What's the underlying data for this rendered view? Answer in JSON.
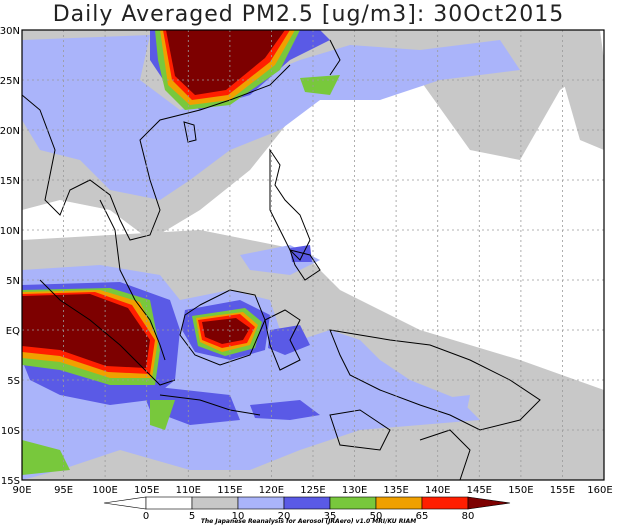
{
  "title": "Daily Averaged PM2.5 [ug/m3]: 30Oct2015",
  "lon_labels": [
    "90E",
    "95E",
    "100E",
    "105E",
    "110E",
    "115E",
    "120E",
    "125E",
    "130E",
    "135E",
    "140E",
    "145E",
    "150E",
    "155E",
    "160E"
  ],
  "lat_labels": [
    "30N",
    "25N",
    "20N",
    "15N",
    "10N",
    "5N",
    "EQ",
    "5S",
    "10S",
    "15S"
  ],
  "colorbar": {
    "labels": [
      "0",
      "5",
      "10",
      "20",
      "35",
      "50",
      "65",
      "80"
    ],
    "colors": [
      "#ffffff",
      "#ffffff",
      "#c8c8c8",
      "#aab4fa",
      "#5a5ae6",
      "#78c83c",
      "#f0a000",
      "#ff1e00",
      "#7d0000"
    ]
  },
  "credit": "The Japanese Reanalysis for Aerosol (JRAero) v1.0 MRI/KU RIAM"
}
